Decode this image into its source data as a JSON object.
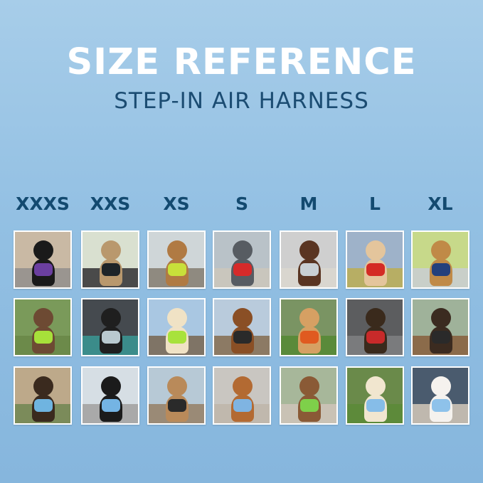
{
  "title": "SIZE REFERENCE",
  "subtitle": "STEP-IN AIR HARNESS",
  "sizes": [
    "XXXS",
    "XXS",
    "XS",
    "S",
    "M",
    "L",
    "XL"
  ],
  "colors": {
    "title": "#ffffff",
    "subtitle": "#1b4c72",
    "size_label": "#134a70"
  },
  "photos": [
    [
      {
        "bg": "#c9b9a4",
        "ground": "#9a9590",
        "animal": "#1a1a1a",
        "harness": "#6b3fa0"
      },
      {
        "bg": "#d9e0d0",
        "ground": "#4a4a4a",
        "animal": "#b9986d",
        "harness": "#1e2428"
      },
      {
        "bg": "#cfd6d8",
        "ground": "#8f8a80",
        "animal": "#b07a43",
        "harness": "#c8e03a"
      },
      {
        "bg": "#b9c2c8",
        "ground": "#c9c6bd",
        "animal": "#575c62",
        "harness": "#d62a2a"
      },
      {
        "bg": "#cfcfcf",
        "ground": "#d9d6cf",
        "animal": "#5a3522",
        "harness": "#c9d0d4"
      },
      {
        "bg": "#9eb2c9",
        "ground": "#b7ae64",
        "animal": "#e4c59c",
        "harness": "#d42b24"
      },
      {
        "bg": "#c7d98a",
        "ground": "#c9cfc9",
        "animal": "#c08a47",
        "harness": "#24407c"
      }
    ],
    [
      {
        "bg": "#7a9a5a",
        "ground": "#6c8a4a",
        "animal": "#6d4a33",
        "harness": "#a7e03a"
      },
      {
        "bg": "#454a4f",
        "ground": "#3b8c8a",
        "animal": "#1f1f1f",
        "harness": "#b9c9cf"
      },
      {
        "bg": "#a9c7e2",
        "ground": "#7f7466",
        "animal": "#f0e2c5",
        "harness": "#a8e23c"
      },
      {
        "bg": "#b9cbdc",
        "ground": "#8c7a64",
        "animal": "#8a4f25",
        "harness": "#2a2a2a"
      },
      {
        "bg": "#7a9463",
        "ground": "#5a8a3a",
        "animal": "#d6a063",
        "harness": "#e05a20"
      },
      {
        "bg": "#5c5d5f",
        "ground": "#7a7b7d",
        "animal": "#3a2a1c",
        "harness": "#c82a2a"
      },
      {
        "bg": "#9fb29a",
        "ground": "#8b6b4a",
        "animal": "#3b2b20",
        "harness": "#2a2a2a"
      }
    ],
    [
      {
        "bg": "#bda98a",
        "ground": "#7b8b5a",
        "animal": "#3a2a1e",
        "harness": "#6fb4e0"
      },
      {
        "bg": "#d6dee4",
        "ground": "#a9a9a9",
        "animal": "#1b1b1b",
        "harness": "#74b4e4"
      },
      {
        "bg": "#b7c9d6",
        "ground": "#9a8a76",
        "animal": "#b98a5a",
        "harness": "#2a2a2a"
      },
      {
        "bg": "#c9c6c1",
        "ground": "#c0b8ad",
        "animal": "#b36a32",
        "harness": "#7fb4e2"
      },
      {
        "bg": "#a7b79a",
        "ground": "#c9c2b5",
        "animal": "#8a5a36",
        "harness": "#7ed04a"
      },
      {
        "bg": "#6a8a4a",
        "ground": "#5d8a3a",
        "animal": "#f1e6cf",
        "harness": "#86bde8"
      },
      {
        "bg": "#4a5b6e",
        "ground": "#bfb8ae",
        "animal": "#f5f2ee",
        "harness": "#8ec2ea"
      }
    ]
  ]
}
